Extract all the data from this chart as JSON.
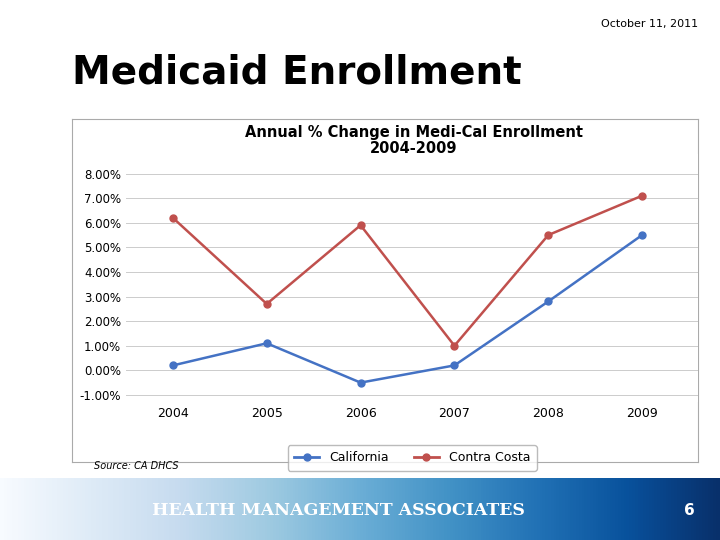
{
  "date_text": "October 11, 2011",
  "slide_title": "Medicaid Enrollment",
  "chart_title_line1": "Annual % Change in Medi-Cal Enrollment",
  "chart_title_line2": "2004-2009",
  "years": [
    2004,
    2005,
    2006,
    2007,
    2008,
    2009
  ],
  "california": [
    0.002,
    0.011,
    -0.005,
    0.002,
    0.028,
    0.055
  ],
  "contra_costa": [
    0.062,
    0.027,
    0.059,
    0.01,
    0.055,
    0.071
  ],
  "california_color": "#4472C4",
  "contra_costa_color": "#C0504D",
  "ylim_min": -0.013,
  "ylim_max": 0.088,
  "yticks": [
    -0.01,
    0.0,
    0.01,
    0.02,
    0.03,
    0.04,
    0.05,
    0.06,
    0.07,
    0.08
  ],
  "source_text": "Source: CA DHCS",
  "footer_text": "HEALTH MANAGEMENT ASSOCIATES",
  "footer_page": "6",
  "header_line_color": "#4472C4",
  "outer_bg_color": "#FFFFFF",
  "legend_california": "California",
  "legend_contra_costa": "Contra Costa"
}
